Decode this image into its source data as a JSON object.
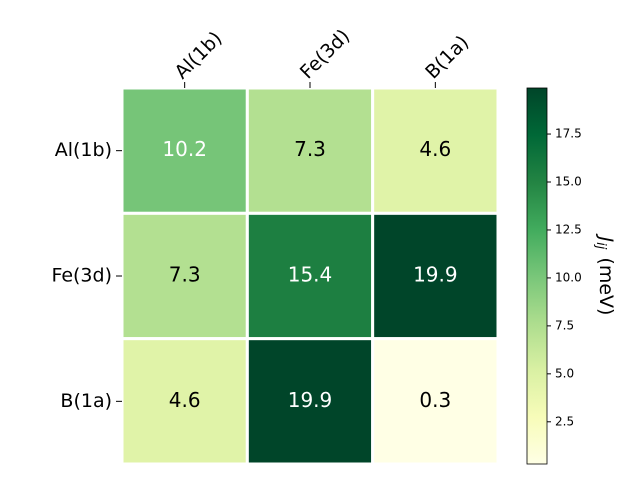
{
  "chart_data": {
    "type": "heatmap",
    "x_categories": [
      "Al(1b)",
      "Fe(3d)",
      "B(1a)"
    ],
    "y_categories": [
      "Al(1b)",
      "Fe(3d)",
      "B(1a)"
    ],
    "values": [
      [
        10.2,
        7.3,
        4.6
      ],
      [
        7.3,
        15.4,
        19.9
      ],
      [
        4.6,
        19.9,
        0.3
      ]
    ],
    "colormap": [
      "#ffffe5",
      "#f7fcb9",
      "#d9f0a3",
      "#addd8e",
      "#78c679",
      "#41ab5d",
      "#238443",
      "#006837",
      "#004529"
    ],
    "clim": [
      0.3,
      19.9
    ],
    "cticks": [
      2.5,
      {
        "value": 5,
        "label": "5.0"
      },
      7.5,
      {
        "value": 10,
        "label": "10.0"
      },
      12.5,
      {
        "value": 15,
        "label": "15.0"
      },
      17.5
    ],
    "colorbar_label": {
      "main": "J",
      "sub": "ij",
      "rest": "(meV)"
    }
  }
}
